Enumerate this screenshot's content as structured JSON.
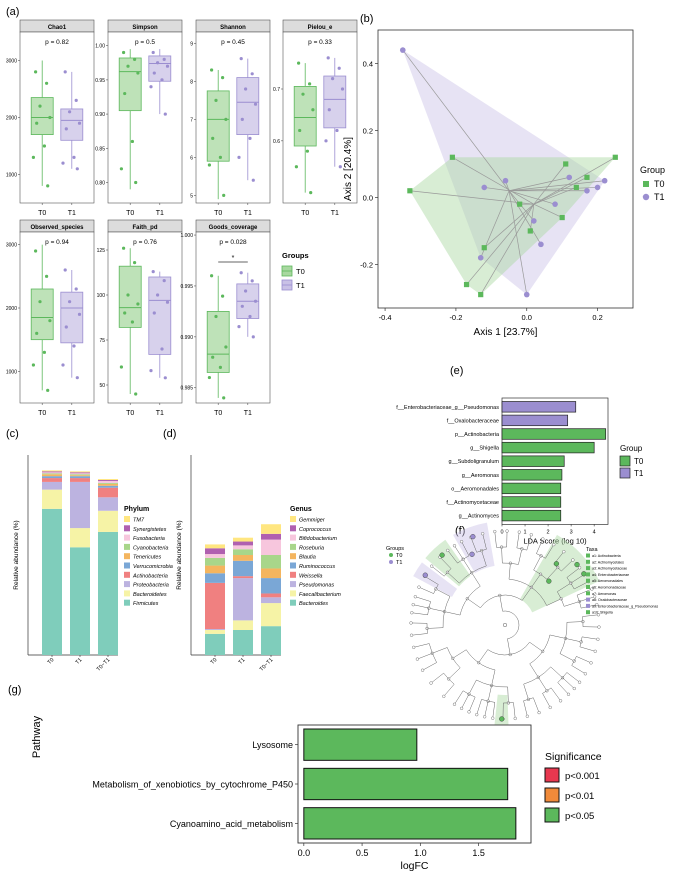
{
  "colors": {
    "T0": "#5cb85c",
    "T0_fill": "#a8d8a0",
    "T0_line": "#4cae4c",
    "T1": "#9b8ed0",
    "T1_fill": "#c9c1e6",
    "sig_001": "#e8384f",
    "sig_01": "#f08a3a",
    "sig_05": "#5cb85c",
    "grey": "#b0b0b0"
  },
  "panels": {
    "a": "(a)",
    "b": "(b)",
    "c": "(c)",
    "d": "(d)",
    "e": "(e)",
    "f": "(f)",
    "g": "(g)"
  },
  "chart_data": [
    {
      "id": "a",
      "type": "boxplot",
      "legend_title": "Groups",
      "legend": [
        "T0",
        "T1"
      ],
      "groups": [
        "T0",
        "T1"
      ],
      "facets": [
        {
          "title": "Chao1",
          "pvalue": "p = 0.82",
          "ylim": [
            500,
            3500
          ],
          "ticks": [
            "1000",
            "2000",
            "3000"
          ],
          "tickvals": [
            1000,
            2000,
            3000
          ],
          "boxes": [
            {
              "q1": 1700,
              "med": 2000,
              "q3": 2350,
              "lo": 800,
              "hi": 3000
            },
            {
              "q1": 1600,
              "med": 1950,
              "q3": 2150,
              "lo": 1100,
              "hi": 2800
            }
          ],
          "points": [
            [
              2800,
              2600,
              2200,
              2000,
              1900,
              1500,
              1300,
              800
            ],
            [
              2800,
              2300,
              2100,
              1900,
              1800,
              1300,
              1200,
              1100
            ]
          ]
        },
        {
          "title": "Simpson",
          "pvalue": "p = 0.5",
          "ylim": [
            0.77,
            1.02
          ],
          "ticks": [
            "0.80",
            "0.85",
            "0.90",
            "0.95",
            "1.00"
          ],
          "tickvals": [
            0.8,
            0.85,
            0.9,
            0.95,
            1.0
          ],
          "boxes": [
            {
              "q1": 0.905,
              "med": 0.962,
              "q3": 0.982,
              "lo": 0.79,
              "hi": 0.995
            },
            {
              "q1": 0.948,
              "med": 0.974,
              "q3": 0.985,
              "lo": 0.9,
              "hi": 0.995
            }
          ],
          "points": [
            [
              0.99,
              0.98,
              0.97,
              0.96,
              0.93,
              0.86,
              0.82,
              0.8
            ],
            [
              0.99,
              0.98,
              0.975,
              0.97,
              0.96,
              0.95,
              0.94,
              0.9
            ]
          ]
        },
        {
          "title": "Shannon",
          "pvalue": "p = 0.45",
          "ylim": [
            4.8,
            9.3
          ],
          "ticks": [
            "5",
            "6",
            "7",
            "8",
            "9"
          ],
          "tickvals": [
            5,
            6,
            7,
            8,
            9
          ],
          "boxes": [
            {
              "q1": 5.9,
              "med": 7.0,
              "q3": 7.75,
              "lo": 4.9,
              "hi": 8.3
            },
            {
              "q1": 6.6,
              "med": 7.45,
              "q3": 8.1,
              "lo": 5.4,
              "hi": 8.6
            }
          ],
          "points": [
            [
              8.3,
              8.1,
              7.5,
              7.0,
              6.5,
              6.0,
              5.8,
              5.0
            ],
            [
              8.6,
              8.2,
              7.8,
              7.4,
              7.0,
              6.5,
              6.0,
              5.4
            ]
          ]
        },
        {
          "title": "Pielou_e",
          "pvalue": "p = 0.33",
          "ylim": [
            0.48,
            0.81
          ],
          "ticks": [
            "0.6",
            "0.7"
          ],
          "tickvals": [
            0.6,
            0.7
          ],
          "boxes": [
            {
              "q1": 0.59,
              "med": 0.645,
              "q3": 0.705,
              "lo": 0.5,
              "hi": 0.75
            },
            {
              "q1": 0.625,
              "med": 0.68,
              "q3": 0.725,
              "lo": 0.55,
              "hi": 0.76
            }
          ],
          "points": [
            [
              0.75,
              0.71,
              0.69,
              0.66,
              0.62,
              0.58,
              0.55,
              0.5
            ],
            [
              0.76,
              0.74,
              0.72,
              0.7,
              0.66,
              0.62,
              0.6,
              0.55
            ]
          ]
        },
        {
          "title": "Observed_species",
          "pvalue": "p = 0.94",
          "ylim": [
            500,
            3200
          ],
          "ticks": [
            "1000",
            "2000",
            "3000"
          ],
          "tickvals": [
            1000,
            2000,
            3000
          ],
          "boxes": [
            {
              "q1": 1500,
              "med": 1850,
              "q3": 2300,
              "lo": 700,
              "hi": 3000
            },
            {
              "q1": 1450,
              "med": 2000,
              "q3": 2250,
              "lo": 900,
              "hi": 2600
            }
          ],
          "points": [
            [
              2900,
              2500,
              2100,
              1800,
              1600,
              1300,
              1100,
              700
            ],
            [
              2600,
              2300,
              2100,
              1900,
              1700,
              1400,
              1100,
              900
            ]
          ]
        },
        {
          "title": "Faith_pd",
          "pvalue": "p = 0.76",
          "ylim": [
            40,
            135
          ],
          "ticks": [
            "50",
            "75",
            "100",
            "125"
          ],
          "tickvals": [
            50,
            75,
            100,
            125
          ],
          "boxes": [
            {
              "q1": 82,
              "med": 93,
              "q3": 116,
              "lo": 45,
              "hi": 126
            },
            {
              "q1": 67,
              "med": 97,
              "q3": 110,
              "lo": 54,
              "hi": 113
            }
          ],
          "points": [
            [
              126,
              118,
              100,
              95,
              90,
              85,
              60,
              45
            ],
            [
              113,
              108,
              100,
              96,
              90,
              70,
              58,
              54
            ]
          ]
        },
        {
          "title": "Goods_coverage",
          "pvalue": "p = 0.028",
          "ylim": [
            0.9835,
            1.0003
          ],
          "ticks": [
            "0.985",
            "0.990",
            "0.995",
            "1.000"
          ],
          "tickvals": [
            0.985,
            0.99,
            0.995,
            1.0
          ],
          "sig": "*",
          "boxes": [
            {
              "q1": 0.9865,
              "med": 0.9883,
              "q3": 0.9925,
              "lo": 0.984,
              "hi": 0.996
            },
            {
              "q1": 0.9918,
              "med": 0.9935,
              "q3": 0.9952,
              "lo": 0.99,
              "hi": 0.9963
            }
          ],
          "points": [
            [
              0.996,
              0.994,
              0.992,
              0.989,
              0.988,
              0.987,
              0.986,
              0.984
            ],
            [
              0.9963,
              0.9955,
              0.9945,
              0.9935,
              0.993,
              0.992,
              0.991,
              0.99
            ]
          ]
        }
      ]
    },
    {
      "id": "b",
      "type": "scatter",
      "xlabel": "Axis 1 [23.7%]",
      "ylabel": "Axis 2 [20.4%]",
      "xlim": [
        -0.42,
        0.3
      ],
      "ylim": [
        -0.33,
        0.5
      ],
      "xticks": [
        "-0.4",
        "-0.2",
        "0.0",
        "0.2"
      ],
      "xtickvals": [
        -0.4,
        -0.2,
        0.0,
        0.2
      ],
      "yticks": [
        "-0.2",
        "0.0",
        "0.2",
        "0.4"
      ],
      "ytickvals": [
        -0.2,
        0.0,
        0.2,
        0.4
      ],
      "legend_title": "Group",
      "legend": [
        "T0",
        "T1"
      ],
      "series": [
        {
          "name": "T0",
          "centroid": [
            0.02,
            -0.02
          ],
          "points": [
            [
              -0.33,
              0.02
            ],
            [
              -0.21,
              0.12
            ],
            [
              -0.17,
              -0.26
            ],
            [
              -0.13,
              -0.29
            ],
            [
              -0.12,
              -0.15
            ],
            [
              -0.02,
              -0.02
            ],
            [
              0.01,
              -0.1
            ],
            [
              0.1,
              -0.06
            ],
            [
              0.11,
              0.1
            ],
            [
              0.14,
              0.03
            ],
            [
              0.17,
              0.06
            ],
            [
              0.25,
              0.12
            ]
          ]
        },
        {
          "name": "T1",
          "centroid": [
            -0.05,
            0.02
          ],
          "points": [
            [
              -0.35,
              0.44
            ],
            [
              -0.12,
              0.03
            ],
            [
              -0.13,
              -0.18
            ],
            [
              -0.06,
              0.05
            ],
            [
              0.0,
              -0.29
            ],
            [
              0.02,
              -0.07
            ],
            [
              0.04,
              -0.14
            ],
            [
              0.08,
              -0.02
            ],
            [
              0.12,
              0.06
            ],
            [
              0.17,
              0.02
            ],
            [
              0.2,
              0.03
            ],
            [
              0.22,
              0.05
            ]
          ]
        }
      ]
    },
    {
      "id": "c",
      "type": "stacked_bar",
      "ylabel": "Relative abundance (%)",
      "legend_title": "Phylum",
      "categories": [
        "T0",
        "T1",
        "T0~T1"
      ],
      "series": [
        {
          "name": "Firmicutes",
          "color": "#7fcdbb",
          "values": [
            76,
            56,
            64
          ]
        },
        {
          "name": "Bacteroidetes",
          "color": "#f6f3a6",
          "values": [
            10,
            10,
            11
          ]
        },
        {
          "name": "Proteobacteria",
          "color": "#bcb3e0",
          "values": [
            4,
            24,
            7
          ]
        },
        {
          "name": "Actinobacteria",
          "color": "#f08080",
          "values": [
            2,
            2,
            5
          ]
        },
        {
          "name": "Verrucomicrobia",
          "color": "#7aa7d6",
          "values": [
            1,
            1,
            1
          ]
        },
        {
          "name": "Tenericutes",
          "color": "#f4b55f",
          "values": [
            1,
            0.5,
            1
          ]
        },
        {
          "name": "Cyanobacteria",
          "color": "#a8d68a",
          "values": [
            0.5,
            0.5,
            0.5
          ]
        },
        {
          "name": "Fusobacteria",
          "color": "#f7c6dd",
          "values": [
            0.5,
            0.5,
            1
          ]
        },
        {
          "name": "Synergistetes",
          "color": "#b060b0",
          "values": [
            0.5,
            0.5,
            0.5
          ]
        },
        {
          "name": "TM7",
          "color": "#ffe680",
          "values": [
            0.5,
            0.5,
            0.5
          ]
        }
      ],
      "legend_order": [
        "TM7",
        "Synergistetes",
        "Fusobacteria",
        "Cyanobacteria",
        "Tenericutes",
        "Verrucomicrobia",
        "Actinobacteria",
        "Proteobacteria",
        "Bacteroidetes",
        "Firmicutes"
      ]
    },
    {
      "id": "d",
      "type": "stacked_bar",
      "ylabel": "Relative abundance (%)",
      "legend_title": "Genus",
      "categories": [
        "T0",
        "T1",
        "T0~T1"
      ],
      "series": [
        {
          "name": "Bacteroides",
          "color": "#7fcdbb",
          "values": [
            11,
            13,
            15
          ]
        },
        {
          "name": "Faecalibacterium",
          "color": "#f6f3a6",
          "values": [
            2,
            5,
            12
          ]
        },
        {
          "name": "Pseudomonas",
          "color": "#bcb3e0",
          "values": [
            0.5,
            22,
            3
          ]
        },
        {
          "name": "Weissella",
          "color": "#f08080",
          "values": [
            24,
            1,
            2
          ]
        },
        {
          "name": "Ruminococcus",
          "color": "#7aa7d6",
          "values": [
            5,
            8,
            8
          ]
        },
        {
          "name": "Blautia",
          "color": "#f4b55f",
          "values": [
            4,
            3,
            5
          ]
        },
        {
          "name": "Roseburia",
          "color": "#a8d68a",
          "values": [
            4,
            3,
            7
          ]
        },
        {
          "name": "Bifidobacterium",
          "color": "#f7c6dd",
          "values": [
            2,
            2,
            8
          ]
        },
        {
          "name": "Coprococcus",
          "color": "#b060b0",
          "values": [
            3,
            2,
            3
          ]
        },
        {
          "name": "Gemmiger",
          "color": "#ffe680",
          "values": [
            2,
            2,
            5
          ]
        }
      ],
      "legend_order": [
        "Gemmiger",
        "Coprococcus",
        "Bifidobacterium",
        "Roseburia",
        "Blautia",
        "Ruminococcus",
        "Weissella",
        "Pseudomonas",
        "Faecalibacterium",
        "Bacteroides"
      ]
    },
    {
      "id": "e",
      "type": "bar",
      "orientation": "horizontal",
      "xlabel": "LDA Score (log 10)",
      "xlim": [
        0,
        4.6
      ],
      "xticks": [
        "0",
        "1",
        "2",
        "3",
        "4"
      ],
      "xtickvals": [
        0,
        1,
        2,
        3,
        4
      ],
      "legend_title": "Group",
      "legend": [
        "T0",
        "T1"
      ],
      "categories": [
        "f__Enterobacteriaceae_g__Pseudomonas",
        "f__Oxalobacteraceae",
        "p__Actinobacteria",
        "g__Shigella",
        "g__Subdoligranulum",
        "g__Aeromonas",
        "o__Aeromonadales",
        "f__Actinomycetaceae",
        "g__Actinomyces"
      ],
      "values": [
        3.2,
        2.85,
        4.5,
        4.0,
        2.7,
        2.6,
        2.55,
        2.55,
        2.55
      ],
      "groups": [
        "T1",
        "T1",
        "T0",
        "T0",
        "T0",
        "T0",
        "T0",
        "T0",
        "T0"
      ]
    },
    {
      "id": "f",
      "type": "cladogram",
      "legend_title": "Groups",
      "legend": [
        "T0",
        "T1"
      ],
      "taxa_title": "Taxa",
      "taxa": [
        "a1: Actinobacteria",
        "a2: Actinomycetales",
        "a3: Actinomycetaceae",
        "a4: Enterobacteriaceae",
        "a5: Aeromonadales",
        "a6: Aeromonadaceae",
        "a7: Aeromonas",
        "a8: Oxalobacteraceae",
        "a9: Enterobacteriaceae_g_Pseudomonas",
        "a10: Shigella"
      ]
    },
    {
      "id": "g",
      "type": "bar",
      "orientation": "horizontal",
      "xlabel": "logFC",
      "ylabel": "Pathway",
      "xlim": [
        -0.05,
        1.95
      ],
      "xticks": [
        "0.0",
        "0.5",
        "1.0",
        "1.5"
      ],
      "xtickvals": [
        0.0,
        0.5,
        1.0,
        1.5
      ],
      "categories": [
        "Lysosome",
        "Metabolism_of_xenobiotics_by_cytochrome_P450",
        "Cyanoamino_acid_metabolism"
      ],
      "values": [
        0.97,
        1.75,
        1.82
      ],
      "significance": [
        "p<0.05",
        "p<0.05",
        "p<0.05"
      ],
      "legend_title": "Significance",
      "legend": [
        "p<0.001",
        "p<0.01",
        "p<0.05"
      ]
    }
  ]
}
